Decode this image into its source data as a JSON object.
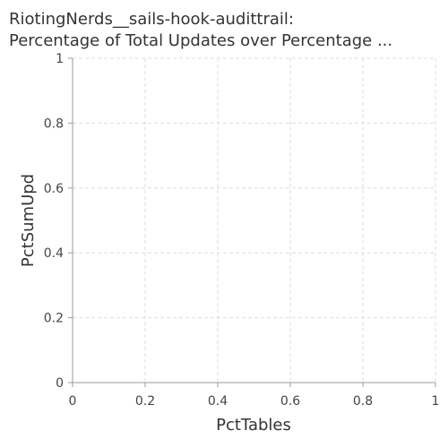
{
  "chart_data": {
    "type": "scatter",
    "title": "RiotingNerds__sails-hook-audittrail: Percentage of Total Updates over Percentage ...",
    "title_lines": [
      "RiotingNerds__sails-hook-audittrail:",
      "Percentage of Total Updates over Percentage ..."
    ],
    "xlabel": "PctTables",
    "ylabel": "PctSumUpd",
    "xlim": [
      0,
      1
    ],
    "ylim": [
      0,
      1
    ],
    "x_ticks": [
      "0",
      "0.2",
      "0.4",
      "0.6",
      "0.8",
      "1"
    ],
    "y_ticks": [
      "0",
      "0.2",
      "0.4",
      "0.6",
      "0.8",
      "1"
    ],
    "grid": true,
    "series": [],
    "colors": {
      "grid": "#dddddd",
      "axis": "#999999",
      "text": "#333333"
    }
  }
}
